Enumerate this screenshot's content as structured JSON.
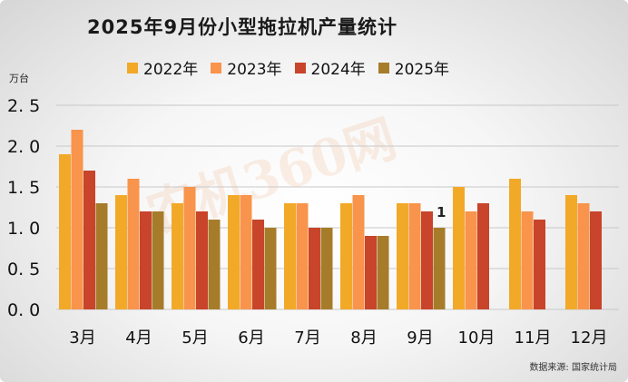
{
  "chart_data": {
    "type": "bar",
    "title": "2025年9月份小型拖拉机产量统计",
    "ylabel": "万台",
    "ylim": [
      0,
      2.5
    ],
    "yticks": [
      "0. 0",
      "0. 5",
      "1. 0",
      "1. 5",
      "2. 0",
      "2. 5"
    ],
    "categories": [
      "3月",
      "4月",
      "5月",
      "6月",
      "7月",
      "8月",
      "9月",
      "10月",
      "11月",
      "12月"
    ],
    "series": [
      {
        "name": "2022年",
        "color": "#f2a928",
        "values": [
          1.9,
          1.4,
          1.3,
          1.4,
          1.3,
          1.3,
          1.3,
          1.5,
          1.6,
          1.4
        ]
      },
      {
        "name": "2023年",
        "color": "#f8944b",
        "values": [
          2.2,
          1.6,
          1.5,
          1.4,
          1.3,
          1.4,
          1.3,
          1.2,
          1.2,
          1.3
        ]
      },
      {
        "name": "2024年",
        "color": "#c8442a",
        "values": [
          1.7,
          1.2,
          1.2,
          1.1,
          1.0,
          0.9,
          1.2,
          1.3,
          1.1,
          1.2
        ]
      },
      {
        "name": "2025年",
        "color": "#a67c2a",
        "values": [
          1.3,
          1.2,
          1.1,
          1.0,
          1.0,
          0.9,
          1.0,
          null,
          null,
          null
        ]
      }
    ],
    "annotations": [
      {
        "text": "1",
        "category": "9月",
        "series": "2025年"
      }
    ],
    "grid": true,
    "legend_position": "top"
  },
  "source_note": "数据来源: 国家统计局",
  "watermark": "农机360网",
  "colors": {
    "grid": "#c8c8c8",
    "background": "#f4f4f4"
  }
}
